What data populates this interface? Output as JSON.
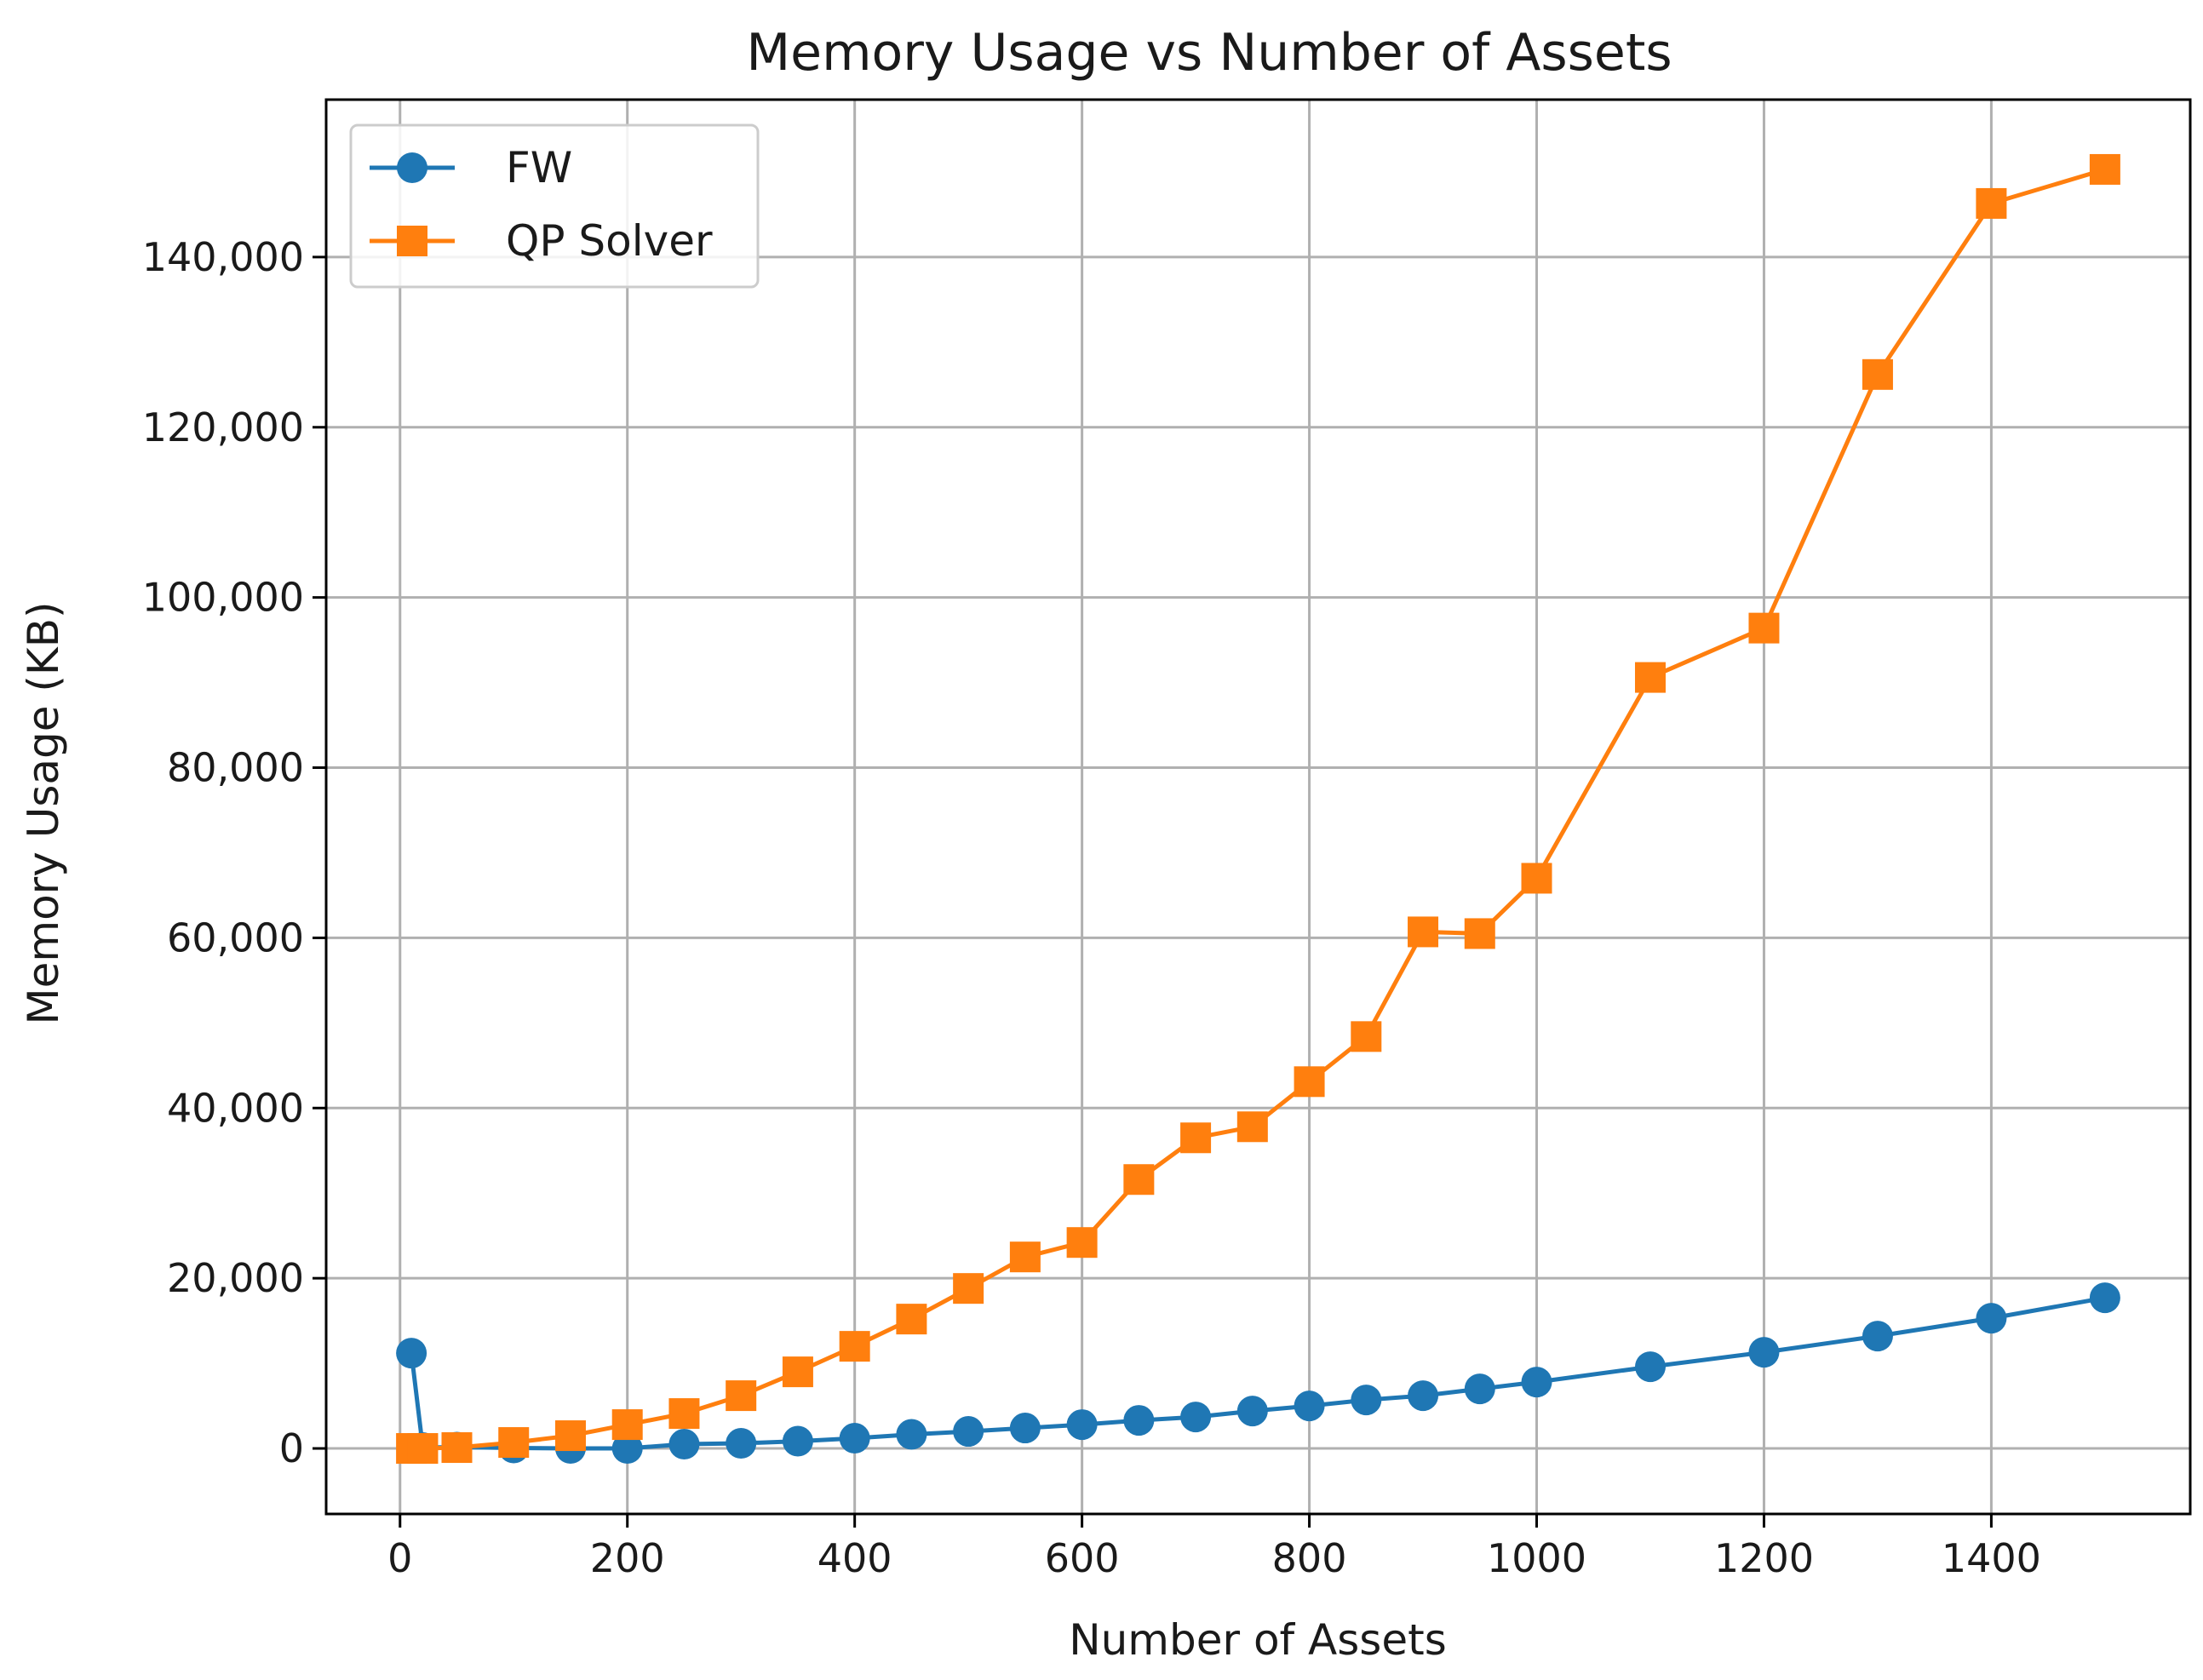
{
  "chart_data": {
    "type": "line",
    "title": "Memory Usage vs Number of Assets",
    "xlabel": "Number of Assets",
    "ylabel": "Memory Usage (KB)",
    "xlim": [
      -65,
      1575
    ],
    "ylim": [
      -7700,
      158500
    ],
    "xticks": [
      0,
      200,
      400,
      600,
      800,
      1000,
      1200,
      1400
    ],
    "xtick_labels": [
      "0",
      "200",
      "400",
      "600",
      "800",
      "1000",
      "1200",
      "1400"
    ],
    "yticks": [
      0,
      20000,
      40000,
      60000,
      80000,
      100000,
      120000,
      140000
    ],
    "ytick_labels": [
      "0",
      "20,000",
      "40,000",
      "60,000",
      "80,000",
      "100,000",
      "120,000",
      "140,000"
    ],
    "grid": true,
    "legend_position": "upper-left",
    "series": [
      {
        "name": "FW",
        "color": "#1f77b4",
        "marker": "circle",
        "x": [
          10,
          20,
          50,
          100,
          150,
          200,
          250,
          300,
          350,
          400,
          450,
          500,
          550,
          600,
          650,
          700,
          750,
          800,
          850,
          900,
          950,
          1000,
          1100,
          1200,
          1300,
          1400,
          1500
        ],
        "y": [
          11200,
          100,
          150,
          50,
          0,
          0,
          500,
          600,
          850,
          1200,
          1650,
          2000,
          2400,
          2800,
          3300,
          3700,
          4400,
          5000,
          5700,
          6200,
          7000,
          7800,
          9600,
          11300,
          13200,
          15300,
          17700
        ]
      },
      {
        "name": "QP Solver",
        "color": "#ff7f0e",
        "marker": "square",
        "x": [
          10,
          20,
          50,
          100,
          150,
          200,
          250,
          300,
          350,
          400,
          450,
          500,
          550,
          600,
          650,
          700,
          750,
          800,
          850,
          900,
          950,
          1000,
          1100,
          1200,
          1300,
          1400,
          1500
        ],
        "y": [
          0,
          0,
          100,
          700,
          1500,
          2800,
          4100,
          6200,
          9000,
          12000,
          15200,
          18800,
          22500,
          24200,
          31600,
          36500,
          37800,
          43100,
          48400,
          60700,
          60500,
          67000,
          90600,
          96400,
          126200,
          146300,
          150300
        ]
      }
    ]
  }
}
